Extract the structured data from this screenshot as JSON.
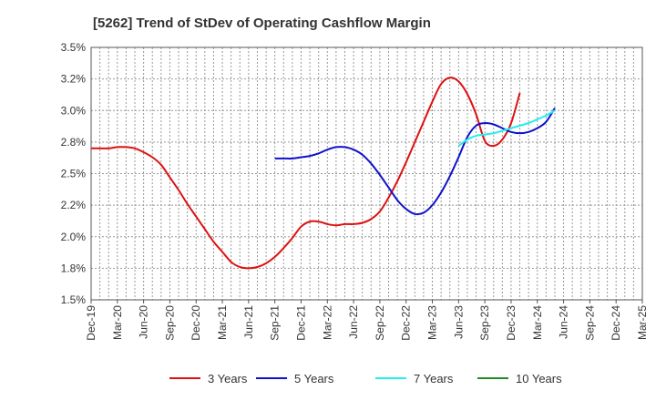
{
  "chart_data": {
    "type": "line",
    "title": "[5262]  Trend of StDev of Operating Cashflow Margin",
    "xlabel": "",
    "ylabel": "",
    "ylim": [
      1.5,
      3.5
    ],
    "y_ticks": [
      "1.5%",
      "1.8%",
      "2.0%",
      "2.2%",
      "2.5%",
      "2.8%",
      "3.0%",
      "3.2%",
      "3.5%"
    ],
    "x_ticks": [
      "Dec-19",
      "Mar-20",
      "Jun-20",
      "Sep-20",
      "Dec-20",
      "Mar-21",
      "Jun-21",
      "Sep-21",
      "Dec-21",
      "Mar-22",
      "Jun-22",
      "Sep-22",
      "Dec-22",
      "Mar-23",
      "Jun-23",
      "Sep-23",
      "Dec-23",
      "Mar-24",
      "Jun-24",
      "Sep-24",
      "Dec-24",
      "Mar-25"
    ],
    "grid": true,
    "legend_position": "bottom",
    "series": [
      {
        "name": "3 Years",
        "color": "#dd1111",
        "start": "Dec-19",
        "values": [
          2.7,
          2.7,
          2.7,
          2.71,
          2.71,
          2.7,
          2.67,
          2.63,
          2.57,
          2.47,
          2.37,
          2.26,
          2.16,
          2.06,
          1.96,
          1.88,
          1.8,
          1.76,
          1.75,
          1.76,
          1.79,
          1.84,
          1.91,
          1.99,
          2.08,
          2.12,
          2.12,
          2.1,
          2.09,
          2.1,
          2.1,
          2.11,
          2.14,
          2.2,
          2.31,
          2.44,
          2.59,
          2.75,
          2.91,
          3.07,
          3.21,
          3.26,
          3.23,
          3.13,
          2.97,
          2.76,
          2.72,
          2.77,
          2.9,
          3.14
        ]
      },
      {
        "name": "5 Years",
        "color": "#1111cc",
        "start": "Sep-21",
        "values": [
          2.62,
          2.62,
          2.62,
          2.63,
          2.64,
          2.66,
          2.69,
          2.71,
          2.71,
          2.69,
          2.65,
          2.58,
          2.49,
          2.39,
          2.29,
          2.22,
          2.18,
          2.19,
          2.25,
          2.35,
          2.48,
          2.63,
          2.79,
          2.88,
          2.9,
          2.89,
          2.86,
          2.83,
          2.82,
          2.83,
          2.86,
          2.91,
          3.02
        ]
      },
      {
        "name": "7 Years",
        "color": "#22eeee",
        "start": "Jun-23",
        "values": [
          2.72,
          2.77,
          2.8,
          2.81,
          2.82,
          2.84,
          2.86,
          2.88,
          2.9,
          2.93,
          2.96,
          3.0
        ]
      },
      {
        "name": "10 Years",
        "color": "#228822",
        "start": "Sep-24",
        "values": []
      }
    ]
  }
}
